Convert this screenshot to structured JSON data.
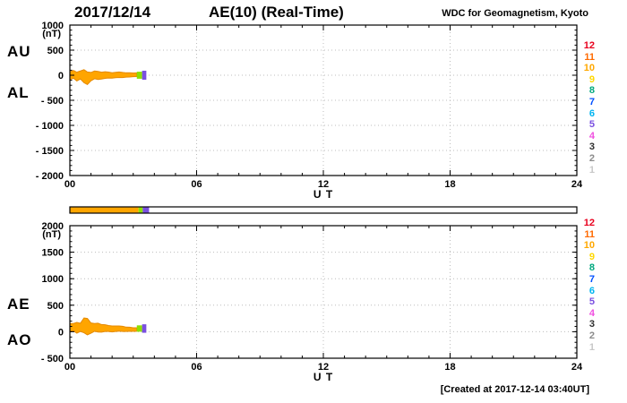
{
  "header": {
    "date": "2017/12/14",
    "title": "AE(10) (Real-Time)",
    "source": "WDC for Geomagnetism, Kyoto"
  },
  "footer": {
    "created_note": "[Created at 2017-12-14 03:40UT]"
  },
  "station_count_legend": {
    "values": [
      12,
      11,
      10,
      9,
      8,
      7,
      6,
      5,
      4,
      3,
      2,
      1
    ],
    "colors": [
      "#e8001e",
      "#ff6a00",
      "#ffa800",
      "#ffd800",
      "#00a87e",
      "#0050ff",
      "#00b4f0",
      "#7a50e0",
      "#f050e0",
      "#303030",
      "#8c8c8c",
      "#c8c8c8"
    ]
  },
  "status_bar": {
    "xlim": [
      0,
      24
    ],
    "segments": [
      {
        "start": 0,
        "end": 3.25,
        "color": "#FFA500"
      },
      {
        "start": 3.25,
        "end": 3.45,
        "color": "#8CE000"
      },
      {
        "start": 3.45,
        "end": 3.75,
        "color": "#7A50E0"
      }
    ]
  },
  "chart_data": [
    {
      "type": "line",
      "name": "au-al",
      "left_labels": [
        "AU",
        "AL"
      ],
      "ylabel": "(nT)",
      "xlabel": "U T",
      "xlim": [
        0,
        24
      ],
      "ylim": [
        -2000,
        1000
      ],
      "xtick_values": [
        0,
        6,
        12,
        18,
        24
      ],
      "xtick_labels": [
        "00",
        "06",
        "12",
        "18",
        "24"
      ],
      "grid_x": [
        6,
        12,
        18
      ],
      "ytick_values": [
        1000,
        500,
        0,
        -500,
        -1000,
        -1500,
        -2000
      ],
      "ytick_labels": [
        "1000",
        "500",
        "0",
        "- 500",
        "- 1000",
        "- 1500",
        "- 2000"
      ],
      "band_color": "#FFA500",
      "band_stroke": "#E58900",
      "x": [
        0,
        0.17,
        0.33,
        0.5,
        0.67,
        0.83,
        1.0,
        1.17,
        1.33,
        1.5,
        1.67,
        1.83,
        2.0,
        2.17,
        2.33,
        2.5,
        2.67,
        2.83,
        3.0,
        3.17
      ],
      "series": [
        {
          "name": "AU",
          "values": [
            70,
            95,
            60,
            85,
            110,
            65,
            55,
            85,
            75,
            60,
            70,
            62,
            50,
            58,
            65,
            55,
            48,
            50,
            44,
            46
          ]
        },
        {
          "name": "AL",
          "values": [
            -85,
            -60,
            -115,
            -75,
            -150,
            -185,
            -110,
            -70,
            -85,
            -75,
            -62,
            -55,
            -58,
            -50,
            -44,
            -46,
            -38,
            -35,
            -30,
            -28
          ]
        }
      ],
      "end_markers": [
        {
          "x0": 3.17,
          "x1": 3.42,
          "y0": -70,
          "y1": 70,
          "color": "#8CE000"
        },
        {
          "x0": 3.42,
          "x1": 3.62,
          "y0": -90,
          "y1": 90,
          "color": "#7A50E0"
        }
      ]
    },
    {
      "type": "line",
      "name": "ae-ao",
      "left_labels": [
        "AE",
        "AO"
      ],
      "ylabel": "(nT)",
      "xlabel": "U T",
      "xlim": [
        0,
        24
      ],
      "ylim": [
        -500,
        2000
      ],
      "xtick_values": [
        0,
        6,
        12,
        18,
        24
      ],
      "xtick_labels": [
        "00",
        "06",
        "12",
        "18",
        "24"
      ],
      "grid_x": [
        6,
        12,
        18
      ],
      "ytick_values": [
        2000,
        1500,
        1000,
        500,
        0,
        -500
      ],
      "ytick_labels": [
        "2000",
        "1500",
        "1000",
        "500",
        "0",
        "- 500"
      ],
      "band_color": "#FFA500",
      "band_stroke": "#E58900",
      "x": [
        0,
        0.17,
        0.33,
        0.5,
        0.67,
        0.83,
        1.0,
        1.17,
        1.33,
        1.5,
        1.67,
        1.83,
        2.0,
        2.17,
        2.33,
        2.5,
        2.67,
        2.83,
        3.0,
        3.17
      ],
      "series": [
        {
          "name": "AE",
          "values": [
            155,
            155,
            175,
            160,
            260,
            250,
            165,
            155,
            160,
            135,
            132,
            117,
            108,
            108,
            109,
            101,
            86,
            85,
            74,
            74
          ]
        },
        {
          "name": "AO",
          "values": [
            -8,
            18,
            -28,
            5,
            -20,
            -60,
            -28,
            8,
            -5,
            -8,
            4,
            4,
            -4,
            4,
            11,
            5,
            5,
            8,
            7,
            9
          ]
        }
      ],
      "end_markers": [
        {
          "x0": 3.17,
          "x1": 3.42,
          "y0": 0,
          "y1": 120,
          "color": "#8CE000"
        },
        {
          "x0": 3.42,
          "x1": 3.62,
          "y0": -20,
          "y1": 140,
          "color": "#7A50E0"
        }
      ]
    }
  ]
}
